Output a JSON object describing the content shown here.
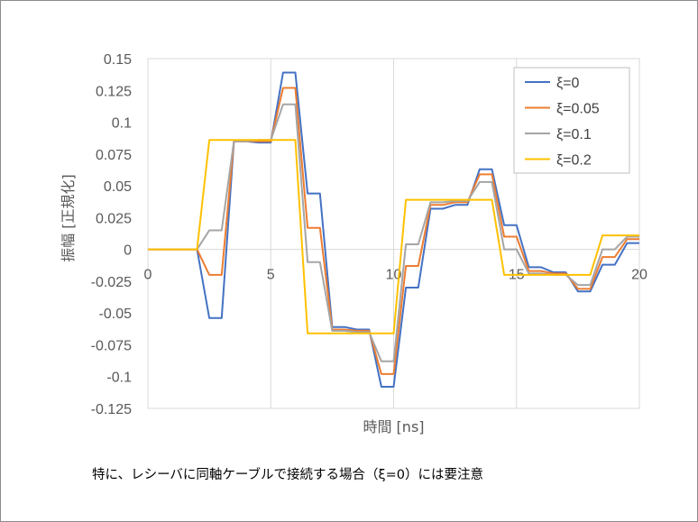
{
  "chart_data": {
    "type": "line",
    "xlabel": "時間 [ns]",
    "ylabel": "振幅 [正規化]",
    "xlim": [
      0,
      20
    ],
    "ylim": [
      -0.125,
      0.15
    ],
    "x_ticks": [
      "0",
      "5",
      "10",
      "15",
      "20"
    ],
    "y_ticks": [
      "0.15",
      "0.125",
      "0.1",
      "0.075",
      "0.05",
      "0.025",
      "0",
      "-0.025",
      "-0.05",
      "-0.075",
      "-0.1",
      "-0.125"
    ],
    "grid": "vertical",
    "legend_position": "top-right",
    "x": [
      0,
      1,
      2,
      2.5,
      3,
      3.5,
      4,
      4.5,
      5,
      5.5,
      6,
      6.5,
      7,
      7.5,
      8,
      8.5,
      9,
      9.5,
      10,
      10.5,
      11,
      11.5,
      12,
      12.5,
      13,
      13.5,
      14,
      14.5,
      15,
      15.5,
      16,
      16.5,
      17,
      17.5,
      18,
      18.5,
      19,
      19.5,
      20
    ],
    "series": [
      {
        "name": "ξ=0",
        "color": "#4472C4",
        "values": [
          0,
          0,
          0,
          -0.054,
          -0.054,
          0.085,
          0.085,
          0.084,
          0.084,
          0.139,
          0.139,
          0.044,
          0.044,
          -0.061,
          -0.061,
          -0.063,
          -0.063,
          -0.108,
          -0.108,
          -0.03,
          -0.03,
          0.032,
          0.032,
          0.035,
          0.035,
          0.063,
          0.063,
          0.019,
          0.019,
          -0.014,
          -0.014,
          -0.018,
          -0.018,
          -0.033,
          -0.033,
          -0.012,
          -0.012,
          0.005,
          0.005
        ]
      },
      {
        "name": "ξ=0.05",
        "color": "#ED7D31",
        "values": [
          0,
          0,
          0,
          -0.02,
          -0.02,
          0.085,
          0.085,
          0.085,
          0.085,
          0.127,
          0.127,
          0.017,
          0.017,
          -0.063,
          -0.063,
          -0.064,
          -0.064,
          -0.098,
          -0.098,
          -0.013,
          -0.013,
          0.035,
          0.035,
          0.037,
          0.037,
          0.059,
          0.059,
          0.01,
          0.01,
          -0.017,
          -0.017,
          -0.019,
          -0.019,
          -0.031,
          -0.031,
          -0.006,
          -0.006,
          0.008,
          0.008
        ]
      },
      {
        "name": "ξ=0.1",
        "color": "#A5A5A5",
        "values": [
          0,
          0,
          0,
          0.015,
          0.015,
          0.085,
          0.085,
          0.086,
          0.086,
          0.114,
          0.114,
          -0.01,
          -0.01,
          -0.064,
          -0.064,
          -0.065,
          -0.065,
          -0.088,
          -0.088,
          0.004,
          0.004,
          0.037,
          0.037,
          0.038,
          0.038,
          0.053,
          0.053,
          0.0,
          0.0,
          -0.019,
          -0.019,
          -0.02,
          -0.02,
          -0.028,
          -0.028,
          0.0,
          0.0,
          0.01,
          0.01
        ]
      },
      {
        "name": "ξ=0.2",
        "color": "#FFC000",
        "values": [
          0,
          0,
          0,
          0.086,
          0.086,
          0.086,
          0.086,
          0.086,
          0.086,
          0.086,
          0.086,
          -0.066,
          -0.066,
          -0.066,
          -0.066,
          -0.066,
          -0.066,
          -0.066,
          -0.066,
          0.039,
          0.039,
          0.039,
          0.039,
          0.039,
          0.039,
          0.039,
          0.039,
          -0.02,
          -0.02,
          -0.02,
          -0.02,
          -0.02,
          -0.02,
          -0.02,
          -0.02,
          0.011,
          0.011,
          0.011,
          0.011
        ]
      }
    ]
  },
  "caption": "特に、レシーバに同軸ケーブルで接続する場合（ξ=0）には要注意"
}
